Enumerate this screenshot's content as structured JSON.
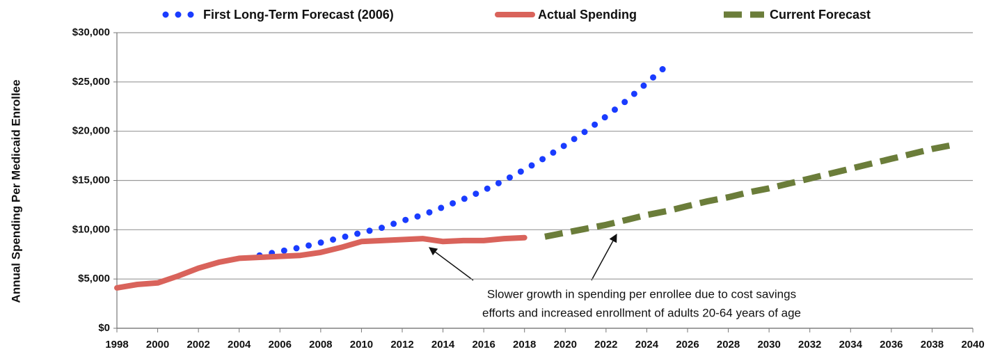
{
  "chart_data": {
    "type": "line",
    "ylabel": "Annual Spending Per Medicaid Enrollee",
    "xlim": [
      1998,
      2040
    ],
    "xticks": [
      1998,
      2000,
      2002,
      2004,
      2006,
      2008,
      2010,
      2012,
      2014,
      2016,
      2018,
      2020,
      2022,
      2024,
      2026,
      2028,
      2030,
      2032,
      2034,
      2036,
      2038,
      2040
    ],
    "ylim": [
      0,
      30000
    ],
    "yticks": [
      {
        "value": 0,
        "label": "$0"
      },
      {
        "value": 5000,
        "label": "$5,000"
      },
      {
        "value": 10000,
        "label": "$10,000"
      },
      {
        "value": 15000,
        "label": "$15,000"
      },
      {
        "value": 20000,
        "label": "$20,000"
      },
      {
        "value": 25000,
        "label": "$25,000"
      },
      {
        "value": 30000,
        "label": "$30,000"
      }
    ],
    "grid": true,
    "legend": "top",
    "annotation": [
      "Slower growth in spending per enrollee due to cost savings",
      "efforts and increased enrollment of adults 20-64 years of age"
    ],
    "series": [
      {
        "name": "First Long-Term Forecast (2006)",
        "color": "#1a3cff",
        "style": "dotted",
        "x": [
          2005,
          2006,
          2007,
          2008,
          2009,
          2010,
          2011,
          2012,
          2013,
          2014,
          2015,
          2016,
          2017,
          2018,
          2019,
          2020,
          2021,
          2022,
          2023,
          2024,
          2025
        ],
        "values": [
          7400,
          7800,
          8200,
          8700,
          9200,
          9700,
          10200,
          10900,
          11500,
          12300,
          13100,
          14000,
          15000,
          16100,
          17300,
          18600,
          20000,
          21500,
          23100,
          24900,
          26700
        ]
      },
      {
        "name": "Actual Spending",
        "color": "#d9635b",
        "style": "solid",
        "x": [
          1998,
          1999,
          2000,
          2001,
          2002,
          2003,
          2004,
          2005,
          2006,
          2007,
          2008,
          2009,
          2010,
          2011,
          2012,
          2013,
          2014,
          2015,
          2016,
          2017,
          2018
        ],
        "values": [
          4100,
          4450,
          4600,
          5300,
          6100,
          6700,
          7100,
          7200,
          7300,
          7400,
          7700,
          8200,
          8800,
          8900,
          9000,
          9100,
          8800,
          8900,
          8900,
          9100,
          9200
        ]
      },
      {
        "name": "Current Forecast",
        "color": "#6b7d3a",
        "style": "dashed",
        "x": [
          2019,
          2020,
          2021,
          2022,
          2023,
          2024,
          2025,
          2026,
          2027,
          2028,
          2029,
          2030,
          2031,
          2032,
          2033,
          2034,
          2035,
          2036,
          2037,
          2038,
          2039
        ],
        "values": [
          9300,
          9700,
          10100,
          10500,
          11000,
          11500,
          11900,
          12400,
          12900,
          13300,
          13800,
          14200,
          14700,
          15200,
          15700,
          16200,
          16700,
          17200,
          17700,
          18200,
          18600
        ]
      }
    ]
  }
}
